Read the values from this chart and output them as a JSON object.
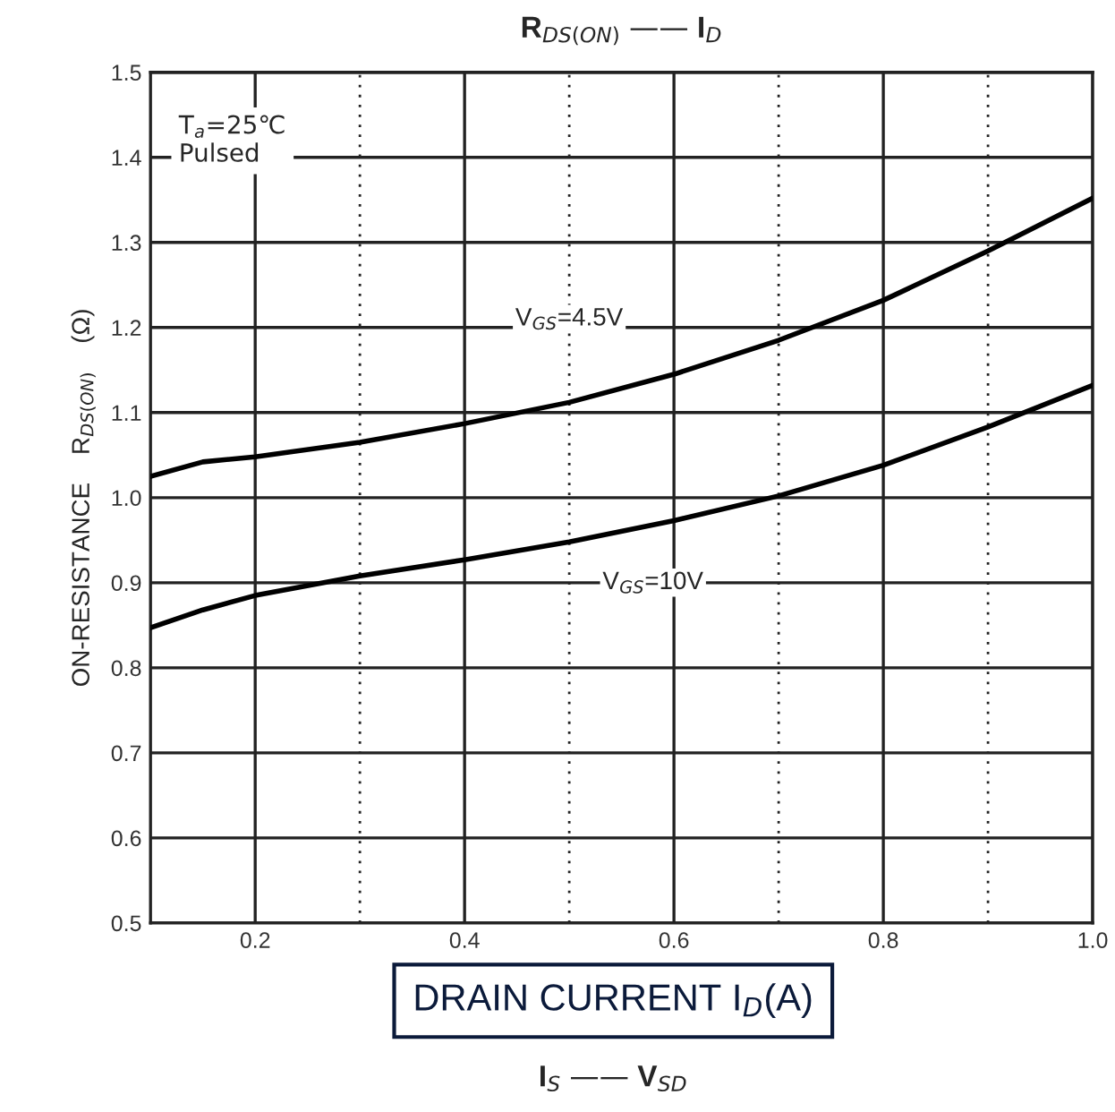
{
  "chart_data": {
    "type": "line",
    "title": "R$_{DS(ON)}$ —— I$_{D}$",
    "xlabel": "DRAIN CURRENT I$_{D}$(A)",
    "ylabel": "ON-RESISTANCE    R$_{DS(ON)}$    (Ω)",
    "x": [
      0.1,
      0.15,
      0.2,
      0.3,
      0.4,
      0.5,
      0.6,
      0.7,
      0.8,
      0.9,
      1.0
    ],
    "series": [
      {
        "name": "V$_{GS}$=4.5V",
        "color": "#000000",
        "values": [
          1.025,
          1.042,
          1.048,
          1.065,
          1.087,
          1.112,
          1.145,
          1.185,
          1.232,
          1.29,
          1.352
        ]
      },
      {
        "name": "V$_{GS}$=10V",
        "color": "#000000",
        "values": [
          0.847,
          0.868,
          0.885,
          0.908,
          0.927,
          0.948,
          0.973,
          1.002,
          1.038,
          1.083,
          1.132
        ]
      }
    ],
    "annotations": [
      "T$_{a}$=25℃\nPulsed",
      "I$_{S}$ —— V$_{SD}$"
    ],
    "xlim": [
      0.1,
      1.0
    ],
    "xticks": [
      0.2,
      {
        "value": 0.3,
        "label": null
      },
      0.4,
      {
        "value": 0.5,
        "label": null
      },
      0.6,
      {
        "value": 0.7,
        "label": null
      },
      0.8,
      {
        "value": 0.9,
        "label": null
      },
      {
        "value": 1.0,
        "label": "1.0"
      }
    ],
    "ylim": [
      0.5,
      1.5
    ],
    "yticks": [
      0.5,
      0.6,
      0.7,
      0.8,
      0.9,
      {
        "value": 1.0,
        "label": "1.0"
      },
      1.1,
      1.2,
      1.3,
      1.4,
      1.5
    ],
    "grid": true,
    "legend": false,
    "marker": "none",
    "line_style": "solid"
  }
}
